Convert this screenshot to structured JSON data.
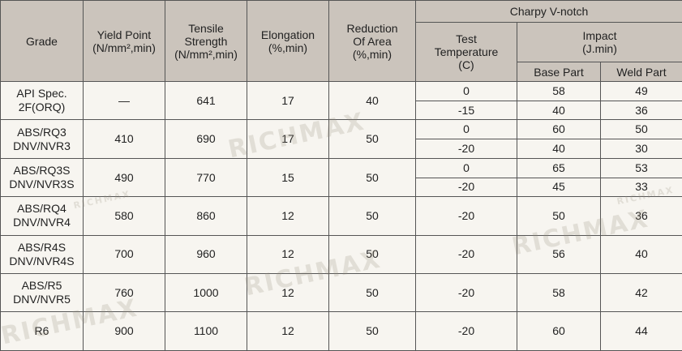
{
  "header": {
    "grade": [
      "Grade"
    ],
    "yield_point": [
      "Yield Point",
      "(N/mm²,min)"
    ],
    "tensile_strength": [
      "Tensile",
      "Strength",
      "(N/mm²,min)"
    ],
    "elongation": [
      "Elongation",
      "(%,min)"
    ],
    "reduction_of_area": [
      "Reduction",
      "Of Area",
      "(%,min)"
    ],
    "charpy": "Charpy V-notch",
    "test_temperature": [
      "Test",
      "Temperature",
      "(C)"
    ],
    "impact": [
      "Impact",
      "(J.min)"
    ],
    "base_part": "Base Part",
    "weld_part": "Weld Part"
  },
  "rows": [
    {
      "grade": [
        "API Spec.",
        "2F(ORQ)"
      ],
      "yield_point": "—",
      "tensile_strength": 641,
      "elongation": 17,
      "reduction_of_area": 40,
      "tests": [
        {
          "temperature": 0,
          "base_part": 58,
          "weld_part": 49
        },
        {
          "temperature": -15,
          "base_part": 40,
          "weld_part": 36
        }
      ]
    },
    {
      "grade": [
        "ABS/RQ3",
        "DNV/NVR3"
      ],
      "yield_point": 410,
      "tensile_strength": 690,
      "elongation": 17,
      "reduction_of_area": 50,
      "tests": [
        {
          "temperature": 0,
          "base_part": 60,
          "weld_part": 50
        },
        {
          "temperature": -20,
          "base_part": 40,
          "weld_part": 30
        }
      ]
    },
    {
      "grade": [
        "ABS/RQ3S",
        "DNV/NVR3S"
      ],
      "yield_point": 490,
      "tensile_strength": 770,
      "elongation": 15,
      "reduction_of_area": 50,
      "tests": [
        {
          "temperature": 0,
          "base_part": 65,
          "weld_part": 53
        },
        {
          "temperature": -20,
          "base_part": 45,
          "weld_part": 33
        }
      ]
    },
    {
      "grade": [
        "ABS/RQ4",
        "DNV/NVR4"
      ],
      "yield_point": 580,
      "tensile_strength": 860,
      "elongation": 12,
      "reduction_of_area": 50,
      "tests": [
        {
          "temperature": -20,
          "base_part": 50,
          "weld_part": 36
        }
      ]
    },
    {
      "grade": [
        "ABS/R4S",
        "DNV/NVR4S"
      ],
      "yield_point": 700,
      "tensile_strength": 960,
      "elongation": 12,
      "reduction_of_area": 50,
      "tests": [
        {
          "temperature": -20,
          "base_part": 56,
          "weld_part": 40
        }
      ]
    },
    {
      "grade": [
        "ABS/R5",
        "DNV/NVR5"
      ],
      "yield_point": 760,
      "tensile_strength": 1000,
      "elongation": 12,
      "reduction_of_area": 50,
      "tests": [
        {
          "temperature": -20,
          "base_part": 58,
          "weld_part": 42
        }
      ]
    },
    {
      "grade": [
        "R6"
      ],
      "yield_point": 900,
      "tensile_strength": 1100,
      "elongation": 12,
      "reduction_of_area": 50,
      "tests": [
        {
          "temperature": -20,
          "base_part": 60,
          "weld_part": 44
        }
      ]
    }
  ],
  "watermark": "RICHMAX"
}
